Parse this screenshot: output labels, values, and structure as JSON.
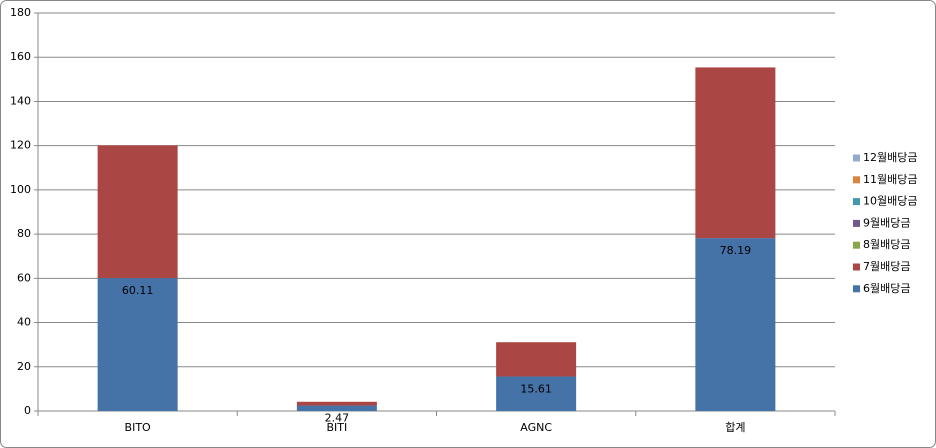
{
  "chart_data": {
    "type": "stacked_bar",
    "categories": [
      "BITO",
      "BITI",
      "AGNC",
      "합계"
    ],
    "series": [
      {
        "name": "6월배당금",
        "color": "#4572a7",
        "values": [
          60.11,
          2.47,
          15.61,
          78.19
        ],
        "labels": true
      },
      {
        "name": "7월배당금",
        "color": "#aa4643",
        "values": [
          60,
          1.7,
          15.5,
          77.2
        ]
      },
      {
        "name": "8월배당금",
        "color": "#89a54e",
        "values": [
          null,
          null,
          null,
          null
        ]
      },
      {
        "name": "9월배당금",
        "color": "#71588f",
        "values": [
          null,
          null,
          null,
          null
        ]
      },
      {
        "name": "10월배당금",
        "color": "#4198af",
        "values": [
          null,
          null,
          null,
          null
        ]
      },
      {
        "name": "11월배당금",
        "color": "#db843d",
        "values": [
          null,
          null,
          null,
          null
        ]
      },
      {
        "name": "12월배당금",
        "color": "#93a9cf",
        "values": [
          null,
          null,
          null,
          null
        ]
      }
    ],
    "ylim": [
      0,
      180
    ],
    "yticks": [
      0,
      20,
      40,
      60,
      80,
      100,
      120,
      140,
      160,
      180
    ],
    "grid": true
  }
}
